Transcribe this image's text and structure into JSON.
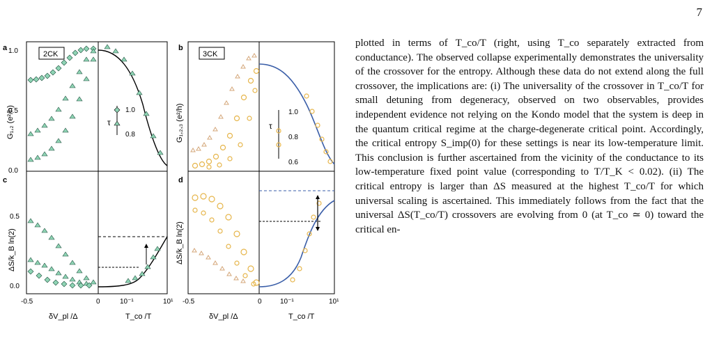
{
  "page_number": "7",
  "figure": {
    "panels": [
      {
        "label": "a",
        "tag": "2CK",
        "ylabel": "G₁,₂ (e²/h)",
        "yticks": [
          "1.0",
          "0.5",
          "0.0"
        ],
        "inset_label": "τ",
        "inset_ticks": [
          "1.0",
          "0.8"
        ]
      },
      {
        "label": "b",
        "tag": "3CK",
        "ylabel": "G₁,₂,₃ (e²/h)",
        "inset_label": "τ",
        "inset_ticks": [
          "1.0",
          "0.8",
          "0.6"
        ]
      },
      {
        "label": "c",
        "ylabel": "ΔS/k_B ln(2)",
        "yticks": [
          "0.5",
          "0.0"
        ]
      },
      {
        "label": "d",
        "ylabel": "ΔS/k_B ln(2)",
        "yticks": [
          "0.5",
          "0.0"
        ]
      }
    ],
    "xticks_left": [
      "-0.5",
      "0"
    ],
    "xticks_right": [
      "0",
      "10⁻¹",
      "10¹"
    ],
    "xlabel_left": "δV_pl /Δ",
    "xlabel_right": "T_co /T",
    "colors": {
      "2ck_marker": "#8fd4b4",
      "3ck_marker": "#e6b54a",
      "3ck_light": "#d4a77a",
      "theory_blue": "#3a5ea8"
    }
  },
  "paragraph": "plotted in terms of T_co/T (right, using T_co separately extracted from conductance). The observed collapse experimentally demonstrates the universality of the crossover for the entropy. Although these data do not extend along the full crossover, the implications are: (i) The universality of the crossover in T_co/T for small detuning from degeneracy, observed on two observables, provides independent evidence not relying on the Kondo model that the system is deep in the quantum critical regime at the charge-degenerate critical point. Accordingly, the critical entropy S_imp(0) for these settings is near its low-temperature limit. This conclusion is further ascertained from the vicinity of the conductance to its low-temperature fixed point value (corresponding to T/T_K < 0.02). (ii) The critical entropy is larger than ΔS measured at the highest T_co/T for which universal scaling is ascertained. This immediately follows from the fact that the universal ΔS(T_co/T) crossovers are evolving from 0 (at T_co ≃ 0) toward the critical en-"
}
